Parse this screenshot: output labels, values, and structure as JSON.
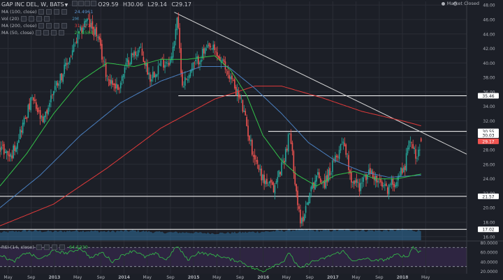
{
  "header": {
    "symbol_label": "GAP INC DEL, W, BATS",
    "o_label": "O",
    "o_value": "29.59",
    "h_label": "H",
    "h_value": "30.06",
    "l_label": "L",
    "l_value": "29.14",
    "c_label": "C",
    "c_value": "29.17",
    "market_status": "Market Closed",
    "up_color": "#26a69a",
    "down_color": "#ef5350"
  },
  "indicators": [
    {
      "label": "MA (100, close)",
      "value": "24.4961",
      "color": "#5b8fc7"
    },
    {
      "label": "Vol (20)",
      "value": "2M",
      "color": "#4a90b8"
    },
    {
      "label": "MA (200, close)",
      "value": "31.3210",
      "color": "#e03a3a"
    },
    {
      "label": "MA (50, close)",
      "value": "24.6584",
      "color": "#33c24a"
    }
  ],
  "rsi_indicator": {
    "label": "RSI (14, close)",
    "value": "64.5230",
    "color": "#33c24a"
  },
  "chart_data": {
    "type": "candlestick",
    "timeframe": "W",
    "x_ticks": [
      "May",
      "Sep",
      "2013",
      "May",
      "Sep",
      "2014",
      "May",
      "Sep",
      "2015",
      "May",
      "Sep",
      "2016",
      "May",
      "Sep",
      "2017",
      "May",
      "Sep",
      "2018",
      "May"
    ],
    "price_axis_ticks": [
      "48.00",
      "46.00",
      "44.00",
      "42.00",
      "40.00",
      "38.00",
      "36.00",
      "34.00",
      "32.00",
      "30.00",
      "28.00",
      "26.00",
      "24.00",
      "22.00",
      "20.00",
      "18.00",
      "16.00"
    ],
    "price_ylim": [
      15.5,
      48.5
    ],
    "rsi_axis_ticks": [
      "80.0000",
      "60.0000",
      "40.0000",
      "20.0000"
    ],
    "rsi_ylim": [
      15,
      82
    ],
    "rsi_bands": [
      70,
      30
    ],
    "price_labels": [
      {
        "text": "35.46",
        "value": 35.46,
        "color": "#ffffff"
      },
      {
        "text": "30.55",
        "value": 30.55,
        "color": "#ffffff"
      },
      {
        "text": "30.03",
        "value": 30.03,
        "color": "#ffffff"
      },
      {
        "text": "29.17",
        "value": 29.17,
        "color": "#ef5350"
      },
      {
        "text": "21.57",
        "value": 21.57,
        "color": "#ffffff"
      },
      {
        "text": "17.02",
        "value": 17.02,
        "color": "#ffffff"
      }
    ],
    "horizontal_lines": [
      35.46,
      30.55,
      21.57,
      17.02
    ],
    "trendline": {
      "from_week": 130,
      "from_value": 47.0,
      "to_week": 348,
      "to_value": 27.4
    },
    "price_anchors": [
      [
        0,
        28.5
      ],
      [
        8,
        27.0
      ],
      [
        16,
        31.0
      ],
      [
        24,
        35.0
      ],
      [
        32,
        31.5
      ],
      [
        40,
        36.5
      ],
      [
        48,
        39.0
      ],
      [
        56,
        42.5
      ],
      [
        64,
        46.0
      ],
      [
        72,
        44.0
      ],
      [
        80,
        38.0
      ],
      [
        88,
        36.5
      ],
      [
        96,
        40.5
      ],
      [
        104,
        42.0
      ],
      [
        112,
        38.0
      ],
      [
        120,
        40.0
      ],
      [
        128,
        40.5
      ],
      [
        132,
        46.5
      ],
      [
        136,
        37.0
      ],
      [
        144,
        39.5
      ],
      [
        152,
        41.5
      ],
      [
        158,
        42.0
      ],
      [
        164,
        40.5
      ],
      [
        172,
        38.0
      ],
      [
        180,
        34.5
      ],
      [
        188,
        28.0
      ],
      [
        196,
        24.0
      ],
      [
        204,
        22.5
      ],
      [
        212,
        27.0
      ],
      [
        216,
        30.3
      ],
      [
        220,
        24.0
      ],
      [
        224,
        17.5
      ],
      [
        230,
        21.5
      ],
      [
        236,
        24.5
      ],
      [
        242,
        23.5
      ],
      [
        250,
        26.5
      ],
      [
        256,
        29.7
      ],
      [
        262,
        24.0
      ],
      [
        268,
        23.0
      ],
      [
        276,
        25.0
      ],
      [
        282,
        23.5
      ],
      [
        288,
        22.5
      ],
      [
        296,
        24.0
      ],
      [
        302,
        26.0
      ],
      [
        306,
        29.8
      ],
      [
        310,
        27.0
      ],
      [
        314,
        29.4
      ]
    ],
    "ma50_anchors": [
      [
        0,
        23.0
      ],
      [
        20,
        27.5
      ],
      [
        40,
        33.0
      ],
      [
        60,
        37.5
      ],
      [
        80,
        40.0
      ],
      [
        100,
        39.5
      ],
      [
        120,
        40.5
      ],
      [
        140,
        40.5
      ],
      [
        160,
        41.0
      ],
      [
        172,
        39.0
      ],
      [
        184,
        35.5
      ],
      [
        196,
        30.0
      ],
      [
        210,
        26.5
      ],
      [
        222,
        24.5
      ],
      [
        236,
        23.0
      ],
      [
        250,
        24.5
      ],
      [
        264,
        25.0
      ],
      [
        280,
        24.0
      ],
      [
        296,
        24.0
      ],
      [
        314,
        24.66
      ]
    ],
    "ma100_anchors": [
      [
        0,
        20.0
      ],
      [
        30,
        24.5
      ],
      [
        60,
        30.0
      ],
      [
        90,
        34.5
      ],
      [
        120,
        37.5
      ],
      [
        150,
        39.5
      ],
      [
        170,
        39.5
      ],
      [
        190,
        36.5
      ],
      [
        210,
        33.0
      ],
      [
        230,
        29.0
      ],
      [
        250,
        26.5
      ],
      [
        270,
        25.0
      ],
      [
        290,
        24.2
      ],
      [
        314,
        24.5
      ]
    ],
    "ma200_anchors": [
      [
        0,
        17.5
      ],
      [
        40,
        20.5
      ],
      [
        80,
        25.5
      ],
      [
        120,
        31.0
      ],
      [
        160,
        35.0
      ],
      [
        190,
        36.8
      ],
      [
        210,
        36.8
      ],
      [
        240,
        35.2
      ],
      [
        270,
        33.3
      ],
      [
        300,
        32.0
      ],
      [
        314,
        31.32
      ]
    ],
    "rsi_anchors": [
      [
        0,
        55
      ],
      [
        10,
        40
      ],
      [
        20,
        60
      ],
      [
        30,
        45
      ],
      [
        40,
        63
      ],
      [
        50,
        58
      ],
      [
        60,
        68
      ],
      [
        68,
        48
      ],
      [
        76,
        60
      ],
      [
        84,
        40
      ],
      [
        92,
        55
      ],
      [
        100,
        64
      ],
      [
        108,
        50
      ],
      [
        116,
        57
      ],
      [
        124,
        44
      ],
      [
        132,
        73
      ],
      [
        140,
        44
      ],
      [
        148,
        60
      ],
      [
        156,
        55
      ],
      [
        164,
        52
      ],
      [
        172,
        45
      ],
      [
        180,
        40
      ],
      [
        188,
        27
      ],
      [
        196,
        20
      ],
      [
        204,
        32
      ],
      [
        212,
        42
      ],
      [
        216,
        60
      ],
      [
        220,
        38
      ],
      [
        224,
        25
      ],
      [
        232,
        40
      ],
      [
        240,
        45
      ],
      [
        248,
        55
      ],
      [
        256,
        62
      ],
      [
        264,
        40
      ],
      [
        272,
        47
      ],
      [
        280,
        42
      ],
      [
        288,
        45
      ],
      [
        296,
        55
      ],
      [
        304,
        50
      ],
      [
        308,
        72
      ],
      [
        312,
        60
      ],
      [
        314,
        64.52
      ]
    ],
    "volume_anchors": [
      [
        0,
        0.45
      ],
      [
        20,
        0.55
      ],
      [
        40,
        0.5
      ],
      [
        60,
        0.55
      ],
      [
        80,
        0.5
      ],
      [
        100,
        0.55
      ],
      [
        120,
        0.45
      ],
      [
        140,
        0.45
      ],
      [
        160,
        0.4
      ],
      [
        180,
        0.45
      ],
      [
        200,
        0.5
      ],
      [
        220,
        0.6
      ],
      [
        240,
        0.55
      ],
      [
        260,
        0.6
      ],
      [
        280,
        0.55
      ],
      [
        300,
        0.6
      ],
      [
        314,
        0.55
      ]
    ],
    "ma_colors": {
      "ma50": "#33c24a",
      "ma100": "#4a7fbf",
      "ma200": "#e03a3a"
    }
  }
}
